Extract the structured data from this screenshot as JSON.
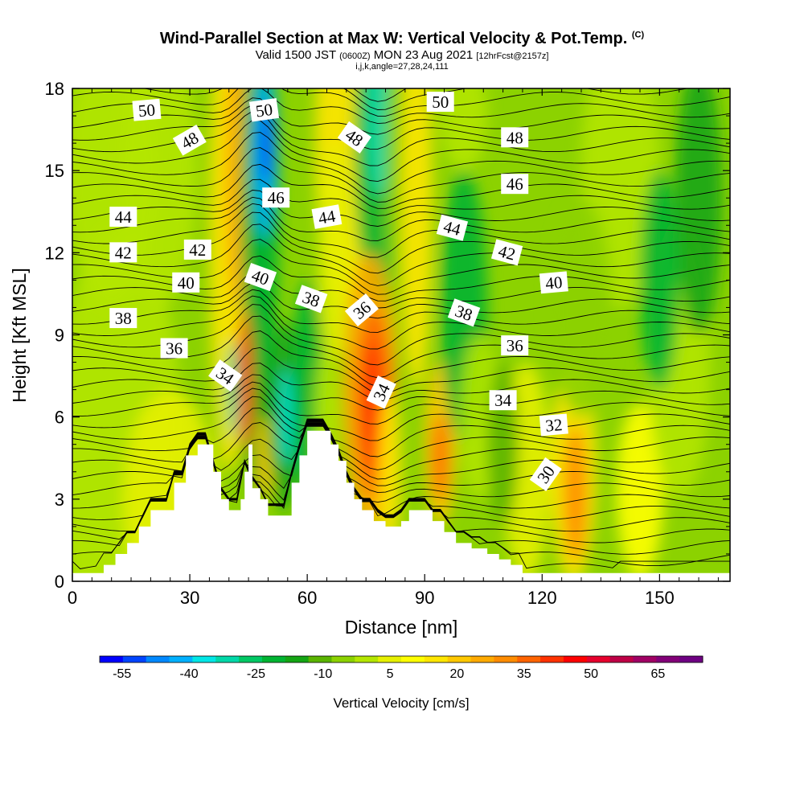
{
  "header": {
    "title_main": "Wind-Parallel Section at Max W: Vertical Velocity & Pot.Temp.",
    "title_mark": "(C)",
    "valid_a": "Valid 1500 JST",
    "valid_utc": "(0600Z)",
    "valid_b": "MON 23 Aug 2021",
    "valid_fcst": "[12hrFcst@2157z]",
    "indices": "i,j,k,angle=27,28,24,111"
  },
  "chart_data": {
    "type": "heatmap",
    "xlabel": "Distance [nm]",
    "ylabel": "Height [Kft MSL]",
    "xlim": [
      0,
      168
    ],
    "ylim": [
      0,
      18
    ],
    "x_ticks": [
      "0",
      "30",
      "60",
      "90",
      "120",
      "150"
    ],
    "y_ticks": [
      "0",
      "3",
      "6",
      "9",
      "12",
      "15",
      "18"
    ],
    "colorbar": {
      "label": "Vertical Velocity [cm/s]",
      "tick_labels": [
        "-55",
        "-40",
        "-25",
        "-10",
        "5",
        "20",
        "35",
        "50",
        "65"
      ],
      "range": [
        -60,
        75
      ],
      "colors": [
        "#0000ff",
        "#0044ff",
        "#0088ff",
        "#00b0ff",
        "#00e6e6",
        "#00d8a8",
        "#00c864",
        "#00b432",
        "#14a514",
        "#5ab400",
        "#8cd200",
        "#b4e600",
        "#e6f000",
        "#ffff00",
        "#ffe600",
        "#ffc800",
        "#ffaa00",
        "#ff8c00",
        "#ff6400",
        "#ff3200",
        "#ff0000",
        "#e6002d",
        "#be0046",
        "#a00064",
        "#820078",
        "#6e0082"
      ]
    },
    "theta_contour_labels": [
      {
        "text": "50",
        "x": 19,
        "y": 17.2,
        "a": -5
      },
      {
        "text": "50",
        "x": 49,
        "y": 17.2,
        "a": -8
      },
      {
        "text": "50",
        "x": 94,
        "y": 17.5,
        "a": 0
      },
      {
        "text": "48",
        "x": 30,
        "y": 16.1,
        "a": -30
      },
      {
        "text": "48",
        "x": 72,
        "y": 16.2,
        "a": 35
      },
      {
        "text": "48",
        "x": 113,
        "y": 16.2,
        "a": 0
      },
      {
        "text": "46",
        "x": 52,
        "y": 14.0,
        "a": 0
      },
      {
        "text": "46",
        "x": 113,
        "y": 14.5,
        "a": 0
      },
      {
        "text": "44",
        "x": 13,
        "y": 13.3,
        "a": 0
      },
      {
        "text": "44",
        "x": 65,
        "y": 13.3,
        "a": -10
      },
      {
        "text": "44",
        "x": 97,
        "y": 12.9,
        "a": 15
      },
      {
        "text": "42",
        "x": 13,
        "y": 12.0,
        "a": 0
      },
      {
        "text": "42",
        "x": 32,
        "y": 12.1,
        "a": 0
      },
      {
        "text": "42",
        "x": 111,
        "y": 12.0,
        "a": 15
      },
      {
        "text": "40",
        "x": 29,
        "y": 10.9,
        "a": 0
      },
      {
        "text": "40",
        "x": 48,
        "y": 11.1,
        "a": 20
      },
      {
        "text": "40",
        "x": 123,
        "y": 10.9,
        "a": -5
      },
      {
        "text": "38",
        "x": 13,
        "y": 9.6,
        "a": 0
      },
      {
        "text": "38",
        "x": 61,
        "y": 10.3,
        "a": 20
      },
      {
        "text": "38",
        "x": 100,
        "y": 9.8,
        "a": 20
      },
      {
        "text": "36",
        "x": 26,
        "y": 8.5,
        "a": 0
      },
      {
        "text": "36",
        "x": 74,
        "y": 9.9,
        "a": -40
      },
      {
        "text": "36",
        "x": 113,
        "y": 8.6,
        "a": 0
      },
      {
        "text": "34",
        "x": 39,
        "y": 7.5,
        "a": 35
      },
      {
        "text": "34",
        "x": 79,
        "y": 6.9,
        "a": -65
      },
      {
        "text": "34",
        "x": 110,
        "y": 6.6,
        "a": 0
      },
      {
        "text": "32",
        "x": 123,
        "y": 5.7,
        "a": -5
      },
      {
        "text": "30",
        "x": 121,
        "y": 3.9,
        "a": -55
      }
    ]
  }
}
